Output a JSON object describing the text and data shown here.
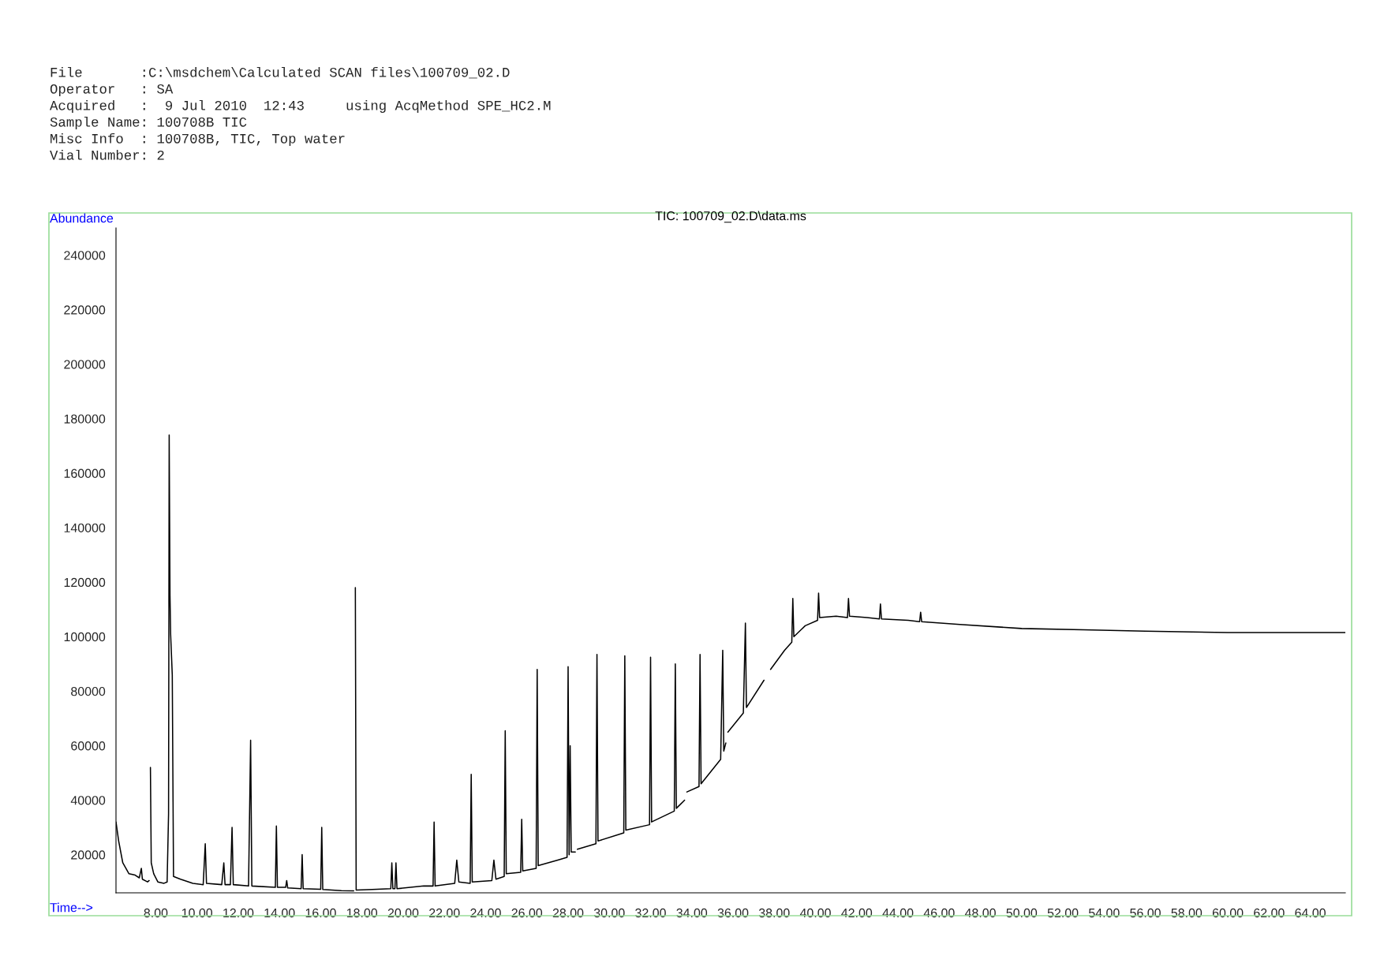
{
  "chart_data": {
    "type": "line",
    "title": "TIC: 100709_02.D\\data.ms",
    "xlabel": "Time-->",
    "ylabel": "Abundance",
    "annotations": [
      "File       :C:\\msdchem\\Calculated SCAN files\\100709_02.D",
      "Operator   : SA",
      "Acquired   :  9 Jul 2010  12:43     using AcqMethod SPE_HC2.M",
      "Sample Name: 100708B TIC",
      "Misc Info  : 100708B, TIC, Top water",
      "Vial Number: 2"
    ],
    "xlim": [
      6.07,
      65.7
    ],
    "ylim": [
      6000,
      250000
    ],
    "xticks": [
      {
        "value": 8,
        "label": "8.00"
      },
      {
        "value": 10,
        "label": "10.00"
      },
      {
        "value": 12,
        "label": "12.00"
      },
      {
        "value": 14,
        "label": "14.00"
      },
      {
        "value": 16,
        "label": "16.00"
      },
      {
        "value": 18,
        "label": "18.00"
      },
      {
        "value": 20,
        "label": "20.00"
      },
      {
        "value": 22,
        "label": "22.00"
      },
      {
        "value": 24,
        "label": "24.00"
      },
      {
        "value": 26,
        "label": "26.00"
      },
      {
        "value": 28,
        "label": "28.00"
      },
      {
        "value": 30,
        "label": "30.00"
      },
      {
        "value": 32,
        "label": "32.00"
      },
      {
        "value": 34,
        "label": "34.00"
      },
      {
        "value": 36,
        "label": "36.00"
      },
      {
        "value": 38,
        "label": "38.00"
      },
      {
        "value": 40,
        "label": "40.00"
      },
      {
        "value": 42,
        "label": "42.00"
      },
      {
        "value": 44,
        "label": "44.00"
      },
      {
        "value": 46,
        "label": "46.00"
      },
      {
        "value": 48,
        "label": "48.00"
      },
      {
        "value": 50,
        "label": "50.00"
      },
      {
        "value": 52,
        "label": "52.00"
      },
      {
        "value": 54,
        "label": "54.00"
      },
      {
        "value": 56,
        "label": "56.00"
      },
      {
        "value": 58,
        "label": "58.00"
      },
      {
        "value": 60,
        "label": "60.00"
      },
      {
        "value": 62,
        "label": "62.00"
      },
      {
        "value": 64,
        "label": "64.00"
      }
    ],
    "yticks": [
      20000,
      40000,
      60000,
      80000,
      100000,
      120000,
      140000,
      160000,
      180000,
      200000,
      220000,
      240000
    ],
    "grid": false,
    "legend": false,
    "marker": "none",
    "line_style": "solid",
    "series": [
      {
        "color": "#000000",
        "x": [
          6.07,
          6.2,
          6.4,
          6.7,
          7.0,
          7.2,
          7.3,
          7.35,
          7.6,
          7.68,
          7.7,
          7.74,
          7.78,
          7.9,
          8.1,
          8.4,
          8.55,
          8.62,
          8.65,
          8.69,
          8.72,
          8.8,
          8.86,
          9.2,
          9.8,
          10.3,
          10.4,
          10.46,
          11.2,
          11.3,
          11.36,
          11.62,
          11.7,
          11.76,
          12.5,
          12.6,
          12.66,
          13.8,
          13.85,
          13.9,
          14.3,
          14.35,
          14.4,
          15.05,
          15.1,
          15.15,
          16.0,
          16.05,
          16.1,
          17.0,
          17.6,
          17.65,
          17.68,
          17.72,
          18.5,
          19.4,
          19.45,
          19.5,
          19.6,
          19.65,
          19.7,
          21.0,
          21.45,
          21.5,
          21.55,
          22.5,
          22.6,
          22.7,
          23.25,
          23.3,
          23.35,
          24.3,
          24.4,
          24.5,
          24.9,
          24.95,
          25.0,
          25.7,
          25.75,
          25.8,
          26.45,
          26.5,
          26.55,
          27.5,
          27.95,
          28.0,
          28.05,
          28.1,
          28.15,
          28.35,
          28.4,
          28.45,
          29.35,
          29.4,
          29.45,
          30.7,
          30.75,
          30.8,
          31.95,
          32.0,
          32.05,
          33.15,
          33.2,
          33.25,
          33.65,
          33.7,
          33.76,
          34.35,
          34.4,
          34.45,
          35.4,
          35.5,
          35.55,
          35.65,
          35.7,
          35.75,
          36.5,
          36.6,
          36.65,
          37.5,
          37.65,
          37.7,
          37.75,
          37.82,
          38.5,
          38.85,
          38.9,
          38.95,
          39.5,
          40.1,
          40.15,
          40.2,
          41.0,
          41.55,
          41.6,
          41.65,
          42.5,
          43.1,
          43.15,
          43.2,
          44.5,
          45.05,
          45.1,
          45.15,
          47,
          50,
          53,
          56,
          60,
          63,
          65.7
        ],
        "values": [
          32000,
          25000,
          17000,
          13000,
          12500,
          11500,
          15000,
          11000,
          10000,
          10500,
          null,
          52000,
          17000,
          13000,
          10000,
          9500,
          10000,
          35000,
          174000,
          115000,
          101000,
          86000,
          12000,
          11000,
          9500,
          9000,
          24000,
          9500,
          9000,
          17000,
          9000,
          9000,
          30000,
          9000,
          8500,
          62000,
          8500,
          8000,
          30500,
          8000,
          8000,
          10500,
          7800,
          7500,
          20000,
          7500,
          7300,
          30000,
          7200,
          6800,
          6700,
          null,
          118000,
          7000,
          7200,
          7500,
          17000,
          7500,
          7500,
          17000,
          7500,
          8500,
          8500,
          32000,
          8500,
          9500,
          18000,
          10000,
          9500,
          49500,
          10000,
          10500,
          18000,
          11000,
          12000,
          65500,
          13000,
          13500,
          33000,
          14000,
          15000,
          88000,
          16000,
          18000,
          19000,
          89000,
          20000,
          60000,
          21000,
          21000,
          null,
          22000,
          24000,
          93500,
          25000,
          28000,
          93000,
          29000,
          31000,
          92500,
          32000,
          36000,
          90000,
          37000,
          40000,
          null,
          43000,
          45000,
          93500,
          46000,
          55000,
          95000,
          58000,
          61000,
          null,
          65000,
          72000,
          105000,
          74000,
          84000,
          null,
          null,
          null,
          88000,
          95000,
          98000,
          114000,
          100000,
          104000,
          106000,
          116000,
          107000,
          107500,
          107000,
          114000,
          107500,
          107000,
          106500,
          112000,
          106500,
          106000,
          105500,
          109000,
          105500,
          104500,
          103000,
          102500,
          102000,
          101500,
          101500,
          101500
        ]
      }
    ]
  }
}
